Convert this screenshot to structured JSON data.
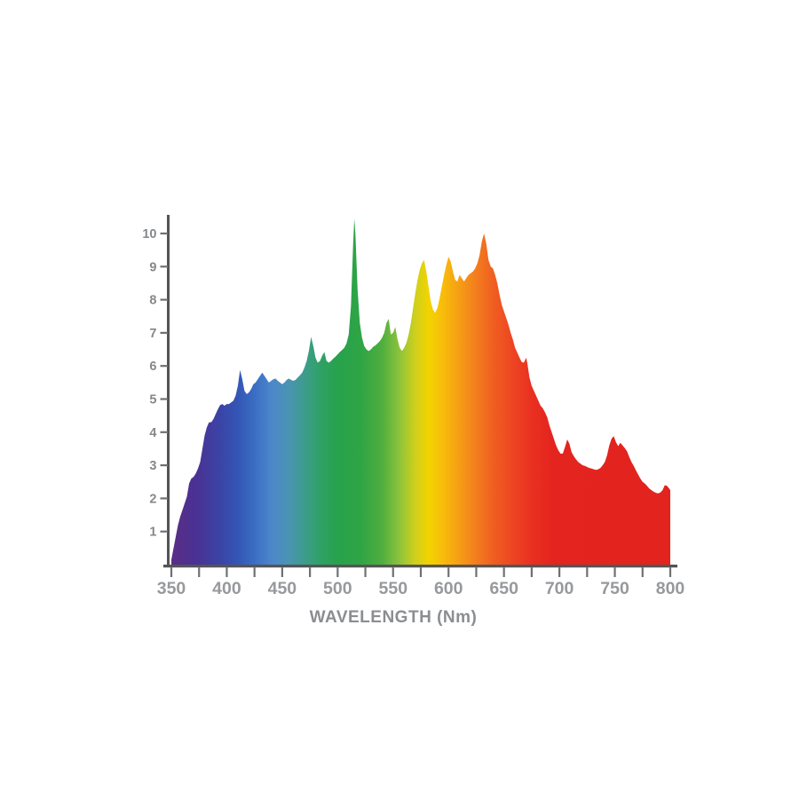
{
  "page": {
    "background_color": "#ffffff"
  },
  "chart_data": {
    "type": "area",
    "title": "",
    "xlabel": "WAVELENGTH (Nm)",
    "ylabel": "",
    "xlim": [
      350,
      800
    ],
    "ylim": [
      0,
      10.5
    ],
    "x_major_ticks": [
      350,
      400,
      450,
      500,
      550,
      600,
      650,
      700,
      750,
      800
    ],
    "x_minor_tick_step": 25,
    "y_ticks": [
      1,
      2,
      3,
      4,
      5,
      6,
      7,
      8,
      9,
      10
    ],
    "grid": "off",
    "legend": "none",
    "axis_color": "#545456",
    "tick_color": "#6f7072",
    "x_tick_label_color": "#97999c",
    "y_tick_label_color": "#85878a",
    "axis_title_color": "#8b8d90",
    "series": [
      {
        "name": "spectral-power-distribution",
        "x": [
          350,
          352,
          354,
          356,
          358,
          360,
          362,
          364,
          366,
          368,
          370,
          372,
          374,
          376,
          378,
          380,
          382,
          384,
          386,
          388,
          390,
          392,
          394,
          396,
          398,
          400,
          402,
          404,
          406,
          408,
          410,
          412,
          414,
          416,
          418,
          420,
          422,
          424,
          426,
          428,
          430,
          432,
          434,
          436,
          438,
          440,
          442,
          444,
          446,
          448,
          450,
          452,
          454,
          456,
          458,
          460,
          462,
          464,
          466,
          468,
          470,
          472,
          474,
          476,
          478,
          480,
          482,
          484,
          486,
          488,
          490,
          492,
          494,
          496,
          498,
          500,
          502,
          504,
          506,
          508,
          510,
          512,
          514,
          515,
          516,
          518,
          520,
          522,
          524,
          526,
          528,
          530,
          532,
          534,
          536,
          538,
          540,
          542,
          544,
          546,
          548,
          550,
          552,
          554,
          556,
          558,
          560,
          562,
          564,
          566,
          568,
          570,
          572,
          574,
          576,
          578,
          580,
          582,
          584,
          586,
          588,
          590,
          592,
          594,
          596,
          598,
          600,
          602,
          604,
          606,
          608,
          610,
          612,
          614,
          616,
          618,
          620,
          622,
          624,
          626,
          628,
          630,
          632,
          634,
          636,
          638,
          640,
          642,
          644,
          646,
          648,
          650,
          652,
          654,
          656,
          658,
          660,
          662,
          664,
          666,
          668,
          670,
          671,
          673,
          675,
          677,
          679,
          681,
          683,
          685,
          687,
          689,
          691,
          693,
          695,
          697,
          699,
          701,
          703,
          705,
          707,
          709,
          711,
          713,
          715,
          717,
          719,
          721,
          723,
          725,
          727,
          729,
          731,
          733,
          735,
          737,
          739,
          741,
          743,
          745,
          747,
          749,
          751,
          753,
          755,
          757,
          759,
          761,
          763,
          765,
          767,
          769,
          771,
          773,
          775,
          777,
          779,
          781,
          783,
          785,
          787,
          789,
          791,
          793,
          795,
          797,
          799,
          800
        ],
        "y": [
          0.15,
          0.5,
          0.85,
          1.2,
          1.45,
          1.65,
          1.85,
          2.05,
          2.45,
          2.6,
          2.65,
          2.75,
          2.9,
          3.1,
          3.5,
          3.9,
          4.15,
          4.3,
          4.3,
          4.4,
          4.55,
          4.7,
          4.82,
          4.85,
          4.8,
          4.85,
          4.85,
          4.9,
          4.95,
          5.1,
          5.4,
          5.88,
          5.6,
          5.25,
          5.15,
          5.2,
          5.3,
          5.45,
          5.5,
          5.6,
          5.7,
          5.8,
          5.7,
          5.6,
          5.5,
          5.55,
          5.6,
          5.62,
          5.55,
          5.5,
          5.45,
          5.5,
          5.58,
          5.62,
          5.58,
          5.55,
          5.58,
          5.65,
          5.72,
          5.8,
          5.95,
          6.15,
          6.45,
          6.88,
          6.6,
          6.25,
          6.1,
          6.15,
          6.3,
          6.42,
          6.15,
          6.1,
          6.15,
          6.22,
          6.28,
          6.35,
          6.42,
          6.48,
          6.55,
          6.68,
          6.95,
          7.8,
          9.7,
          10.45,
          10.0,
          8.3,
          7.3,
          6.85,
          6.6,
          6.5,
          6.45,
          6.5,
          6.58,
          6.62,
          6.68,
          6.75,
          6.85,
          7.0,
          7.3,
          7.42,
          6.95,
          7.0,
          7.18,
          6.8,
          6.55,
          6.45,
          6.55,
          6.7,
          6.95,
          7.3,
          7.75,
          8.2,
          8.6,
          8.9,
          9.1,
          9.2,
          8.85,
          8.4,
          7.95,
          7.7,
          7.6,
          7.75,
          8.05,
          8.4,
          8.75,
          9.05,
          9.3,
          9.15,
          8.85,
          8.6,
          8.55,
          8.75,
          8.65,
          8.55,
          8.65,
          8.75,
          8.8,
          8.85,
          8.95,
          9.1,
          9.35,
          9.75,
          10.0,
          9.7,
          9.2,
          9.0,
          8.95,
          8.75,
          8.5,
          8.15,
          7.85,
          7.65,
          7.45,
          7.25,
          7.0,
          6.8,
          6.55,
          6.4,
          6.25,
          6.12,
          6.1,
          6.25,
          6.1,
          5.65,
          5.4,
          5.25,
          5.1,
          4.95,
          4.8,
          4.72,
          4.6,
          4.45,
          4.2,
          4.0,
          3.8,
          3.6,
          3.45,
          3.35,
          3.35,
          3.55,
          3.78,
          3.65,
          3.4,
          3.28,
          3.18,
          3.1,
          3.05,
          3.0,
          2.98,
          2.95,
          2.92,
          2.9,
          2.88,
          2.86,
          2.88,
          2.92,
          3.0,
          3.1,
          3.3,
          3.6,
          3.8,
          3.88,
          3.7,
          3.58,
          3.68,
          3.6,
          3.52,
          3.42,
          3.25,
          3.1,
          2.98,
          2.85,
          2.72,
          2.6,
          2.5,
          2.45,
          2.38,
          2.3,
          2.25,
          2.2,
          2.17,
          2.15,
          2.18,
          2.25,
          2.4,
          2.38,
          2.3,
          2.25
        ]
      }
    ],
    "spectrum_gradient_stops": [
      {
        "wavelength": 350,
        "color": "#5a2e85"
      },
      {
        "wavelength": 372,
        "color": "#4a3193"
      },
      {
        "wavelength": 395,
        "color": "#3a45a7"
      },
      {
        "wavelength": 410,
        "color": "#3356b5"
      },
      {
        "wavelength": 425,
        "color": "#3a6ec3"
      },
      {
        "wavelength": 440,
        "color": "#4c86ca"
      },
      {
        "wavelength": 455,
        "color": "#4b93b4"
      },
      {
        "wavelength": 470,
        "color": "#3d9c8c"
      },
      {
        "wavelength": 485,
        "color": "#2fa165"
      },
      {
        "wavelength": 500,
        "color": "#27a24c"
      },
      {
        "wavelength": 520,
        "color": "#2ea445"
      },
      {
        "wavelength": 540,
        "color": "#4fae3f"
      },
      {
        "wavelength": 555,
        "color": "#8ac23c"
      },
      {
        "wavelength": 570,
        "color": "#cfd01c"
      },
      {
        "wavelength": 582,
        "color": "#f2d301"
      },
      {
        "wavelength": 595,
        "color": "#f8bc0a"
      },
      {
        "wavelength": 610,
        "color": "#f59d15"
      },
      {
        "wavelength": 625,
        "color": "#f37d1e"
      },
      {
        "wavelength": 640,
        "color": "#f05f21"
      },
      {
        "wavelength": 658,
        "color": "#ed4522"
      },
      {
        "wavelength": 675,
        "color": "#e93021"
      },
      {
        "wavelength": 695,
        "color": "#e4241e"
      },
      {
        "wavelength": 800,
        "color": "#e2231e"
      }
    ]
  }
}
